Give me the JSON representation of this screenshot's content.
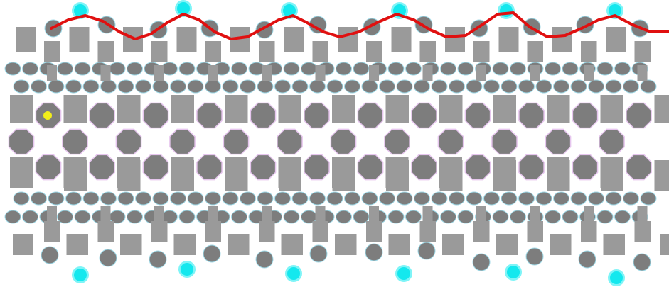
{
  "game": {
    "colors": {
      "background": "#ffffff",
      "block": "#9a9a9a",
      "blockDark": "#7d7d7d",
      "orb": "#14e8ee",
      "orbGlow": "#7ef4f7",
      "playerDot": "#f2ee1a",
      "trail": "#e01010",
      "octagonEdge": "#e6c6ee",
      "pebbleEdge": "#9ed8e6"
    },
    "icons": {
      "player": "yellow-dot",
      "collectible": "cyan-orb",
      "pathTrace": "red-trail-line"
    }
  }
}
